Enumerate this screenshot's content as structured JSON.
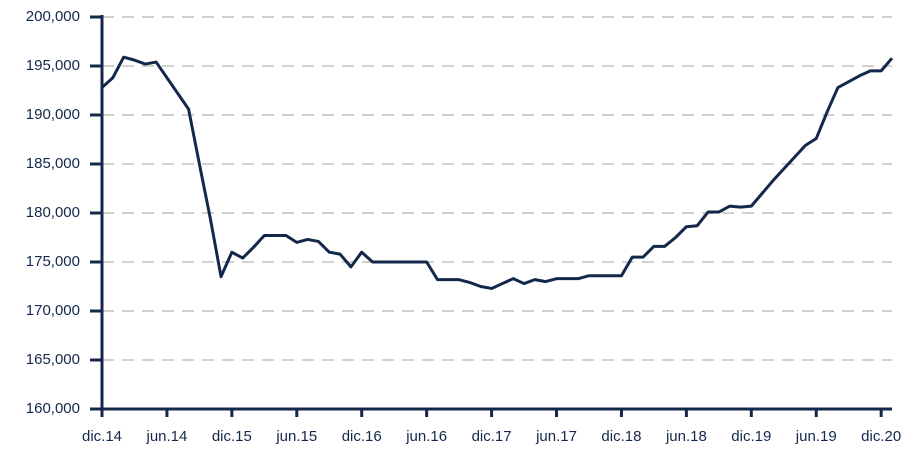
{
  "chart_data": {
    "type": "line",
    "categories": [
      "dic.14",
      null,
      null,
      null,
      null,
      null,
      "jun.14",
      null,
      null,
      null,
      null,
      null,
      "dic.15",
      null,
      null,
      null,
      null,
      null,
      "jun.15",
      null,
      null,
      null,
      null,
      null,
      "dic.16",
      null,
      null,
      null,
      null,
      null,
      "jun.16",
      null,
      null,
      null,
      null,
      null,
      "dic.17",
      null,
      null,
      null,
      null,
      null,
      "jun.17",
      null,
      null,
      null,
      null,
      null,
      "dic.18",
      null,
      null,
      null,
      null,
      null,
      "jun.18",
      null,
      null,
      null,
      null,
      null,
      "dic.19",
      null,
      null,
      null,
      null,
      null,
      "jun.19",
      null,
      null,
      null,
      null,
      null,
      "dic.20",
      null
    ],
    "series": [
      {
        "color": "#13284a",
        "values": [
          192800,
          193800,
          195900,
          195600,
          195200,
          195400,
          193800,
          192200,
          190600,
          185000,
          179500,
          173500,
          176000,
          175400,
          176500,
          177700,
          177700,
          177700,
          177000,
          177300,
          177100,
          176000,
          175800,
          174500,
          176000,
          175000,
          175000,
          175000,
          175000,
          175000,
          175000,
          173200,
          173200,
          173200,
          172900,
          172500,
          172300,
          172800,
          173300,
          172800,
          173200,
          173000,
          173300,
          173300,
          173300,
          173600,
          173600,
          173600,
          173600,
          175500,
          175500,
          176600,
          176600,
          177500,
          178600,
          178700,
          180100,
          180100,
          180700,
          180600,
          180700,
          182000,
          183300,
          184500,
          185700,
          186900,
          187600,
          190300,
          192800,
          193400,
          194000,
          194500,
          194500,
          195800
        ]
      }
    ],
    "ylim": [
      160000,
      200000
    ],
    "yticks": [
      {
        "value": 160000,
        "label": "160,000"
      },
      {
        "value": 165000,
        "label": "165,000"
      },
      {
        "value": 170000,
        "label": "170,000"
      },
      {
        "value": 175000,
        "label": "175,000"
      },
      {
        "value": 180000,
        "label": "180,000"
      },
      {
        "value": 185000,
        "label": "185,000"
      },
      {
        "value": 190000,
        "label": "190,000"
      },
      {
        "value": 195000,
        "label": "195,000"
      },
      {
        "value": 200000,
        "label": "200,000"
      }
    ],
    "grid": true
  }
}
